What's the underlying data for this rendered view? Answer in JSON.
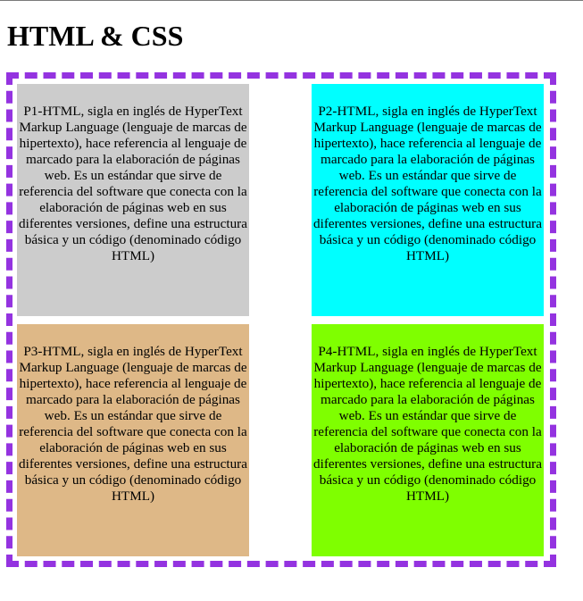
{
  "page": {
    "title": "HTML & CSS"
  },
  "boxes": [
    {
      "text": "P1-HTML, sigla en inglés de HyperText Markup Language (lenguaje de marcas de hipertexto), hace referencia al lenguaje de marcado para la elaboración de páginas web. Es un estándar que sirve de referencia del software que conecta con la elaboración de páginas web en sus diferentes versiones, define una estructura básica y un código (denominado código HTML)",
      "color": "#cccccc"
    },
    {
      "text": "P2-HTML, sigla en inglés de HyperText Markup Language (lenguaje de marcas de hipertexto), hace referencia al lenguaje de marcado para la elaboración de páginas web. Es un estándar que sirve de referencia del software que conecta con la elaboración de páginas web en sus diferentes versiones, define una estructura básica y un código (denominado código HTML)",
      "color": "#00ffff"
    },
    {
      "text": "P3-HTML, sigla en inglés de HyperText Markup Language (lenguaje de marcas de hipertexto), hace referencia al lenguaje de marcado para la elaboración de páginas web. Es un estándar que sirve de referencia del software que conecta con la elaboración de páginas web en sus diferentes versiones, define una estructura básica y un código (denominado código HTML)",
      "color": "#deb887"
    },
    {
      "text": "P4-HTML, sigla en inglés de HyperText Markup Language (lenguaje de marcas de hipertexto), hace referencia al lenguaje de marcado para la elaboración de páginas web. Es un estándar que sirve de referencia del software que conecta con la elaboración de páginas web en sus diferentes versiones, define una estructura básica y un código (denominado código HTML)",
      "color": "#7fff00"
    }
  ],
  "colors": {
    "container_border": "#9433e0"
  }
}
